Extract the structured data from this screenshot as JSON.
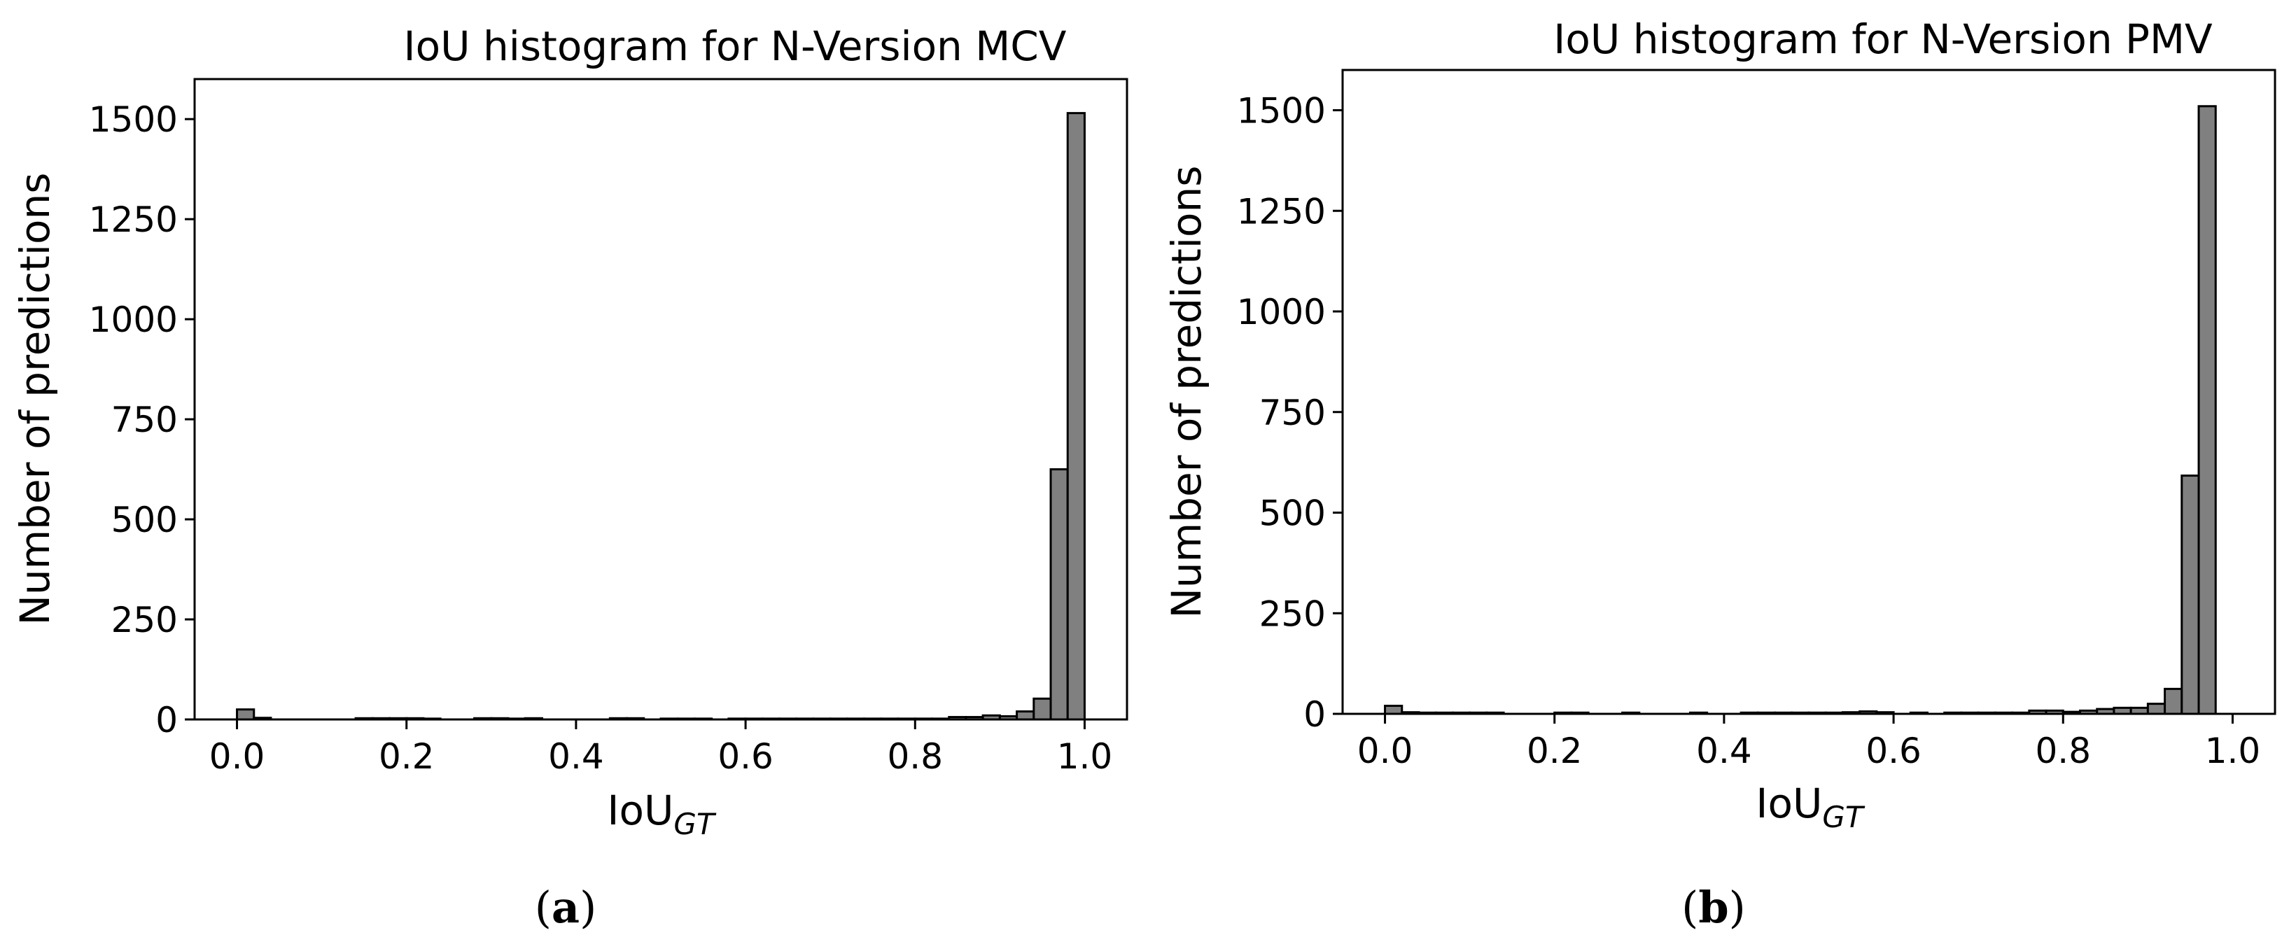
{
  "colors": {
    "bar_fill": "#808080",
    "bar_edge": "#000000"
  },
  "chart_data": [
    {
      "type": "bar",
      "title": "IoU histogram for N-Version MCV",
      "xlabel": "IoU",
      "xlabel_subscript": "GT",
      "ylabel": "Number of predictions",
      "caption": "a",
      "xlim": [
        -0.05,
        1.05
      ],
      "ylim": [
        0,
        1600
      ],
      "xticks": [
        0.0,
        0.2,
        0.4,
        0.6,
        0.8,
        1.0
      ],
      "xtick_labels": [
        "0.0",
        "0.2",
        "0.4",
        "0.6",
        "0.8",
        "1.0"
      ],
      "yticks": [
        0,
        250,
        500,
        750,
        1000,
        1250,
        1500
      ],
      "ytick_labels": [
        "0",
        "250",
        "500",
        "750",
        "1000",
        "1250",
        "1500"
      ],
      "bin_range": [
        0.0,
        1.0
      ],
      "values": [
        25,
        4,
        0,
        0,
        0,
        0,
        0,
        3,
        3,
        3,
        3,
        2,
        0,
        0,
        3,
        3,
        2,
        3,
        0,
        0,
        0,
        0,
        3,
        3,
        0,
        2,
        2,
        2,
        0,
        2,
        2,
        2,
        2,
        2,
        2,
        2,
        2,
        2,
        2,
        2,
        2,
        2,
        6,
        6,
        10,
        8,
        20,
        52,
        625,
        1515
      ]
    },
    {
      "type": "bar",
      "title": "IoU histogram for N-Version PMV",
      "xlabel": "IoU",
      "xlabel_subscript": "GT",
      "ylabel": "Number of predictions",
      "caption": "b",
      "xlim": [
        -0.05,
        1.05
      ],
      "ylim": [
        0,
        1600
      ],
      "xticks": [
        0.0,
        0.2,
        0.4,
        0.6,
        0.8,
        1.0
      ],
      "xtick_labels": [
        "0.0",
        "0.2",
        "0.4",
        "0.6",
        "0.8",
        "1.0"
      ],
      "yticks": [
        0,
        250,
        500,
        750,
        1000,
        1250,
        1500
      ],
      "ytick_labels": [
        "0",
        "250",
        "500",
        "750",
        "1000",
        "1250",
        "1500"
      ],
      "bin_range": [
        0.0,
        1.0
      ],
      "values": [
        20,
        4,
        3,
        3,
        3,
        3,
        3,
        0,
        0,
        0,
        3,
        3,
        0,
        0,
        3,
        0,
        0,
        0,
        3,
        0,
        0,
        3,
        3,
        3,
        3,
        3,
        3,
        4,
        6,
        4,
        0,
        3,
        0,
        3,
        3,
        3,
        3,
        3,
        8,
        8,
        5,
        8,
        12,
        15,
        15,
        25,
        62,
        592,
        1510,
        0
      ]
    }
  ]
}
